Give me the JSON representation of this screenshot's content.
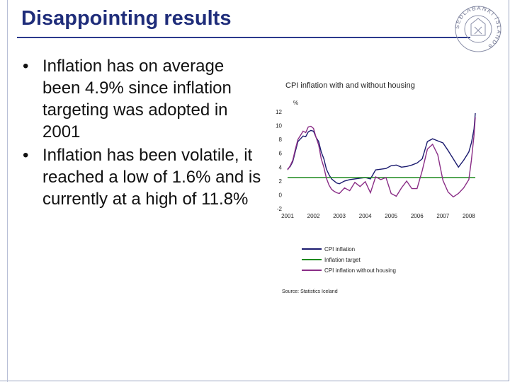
{
  "slide": {
    "title": "Disappointing results",
    "bullets": [
      "Inflation has on average been 4.9% since inflation targeting was adopted in 2001",
      "Inflation has been volatile, it reached a low of 1.6% and is currently at a high of 11.8%"
    ],
    "seal_text": "SEÐLABANKI ÍSLANDS"
  },
  "chart_data": {
    "type": "line",
    "title": "CPI inflation with and without housing",
    "ylabel": "%",
    "source": "Source: Statistics Iceland",
    "xlim": [
      2001,
      2008.25
    ],
    "ylim": [
      -2,
      12
    ],
    "x_ticks": [
      "2001",
      "2002",
      "2003",
      "2004",
      "2005",
      "2006",
      "2007",
      "2008"
    ],
    "y_ticks": [
      -2,
      0,
      2,
      4,
      6,
      8,
      10,
      12
    ],
    "legend_position": "bottom",
    "series": [
      {
        "name": "CPI inflation",
        "color": "#1a1a6e",
        "x": [
          2001.0,
          2001.1,
          2001.2,
          2001.3,
          2001.4,
          2001.5,
          2001.6,
          2001.7,
          2001.8,
          2001.9,
          2002.0,
          2002.1,
          2002.2,
          2002.3,
          2002.4,
          2002.5,
          2002.6,
          2002.7,
          2002.8,
          2002.9,
          2003.0,
          2003.2,
          2003.4,
          2003.6,
          2003.8,
          2004.0,
          2004.2,
          2004.4,
          2004.6,
          2004.8,
          2005.0,
          2005.2,
          2005.4,
          2005.6,
          2005.8,
          2006.0,
          2006.2,
          2006.4,
          2006.6,
          2006.8,
          2007.0,
          2007.2,
          2007.4,
          2007.6,
          2007.8,
          2008.0,
          2008.1,
          2008.2,
          2008.25
        ],
        "y": [
          3.7,
          4.1,
          4.8,
          6.3,
          7.7,
          8.1,
          8.5,
          8.4,
          9.1,
          9.3,
          9.2,
          8.3,
          7.7,
          6.2,
          5.2,
          3.7,
          2.9,
          2.3,
          2.0,
          1.7,
          1.6,
          2.0,
          2.2,
          2.3,
          2.4,
          2.5,
          2.3,
          3.6,
          3.7,
          3.8,
          4.2,
          4.3,
          4.0,
          4.1,
          4.3,
          4.6,
          5.2,
          7.7,
          8.1,
          7.8,
          7.5,
          6.4,
          5.2,
          4.0,
          5.0,
          6.2,
          7.5,
          9.5,
          11.8
        ]
      },
      {
        "name": "Inflation target",
        "color": "#1e8a1e",
        "x": [
          2001.0,
          2008.25
        ],
        "y": [
          2.5,
          2.5
        ]
      },
      {
        "name": "CPI inflation without housing",
        "color": "#8a2d86",
        "x": [
          2001.0,
          2001.1,
          2001.2,
          2001.3,
          2001.4,
          2001.5,
          2001.6,
          2001.7,
          2001.8,
          2001.9,
          2002.0,
          2002.1,
          2002.2,
          2002.3,
          2002.4,
          2002.5,
          2002.6,
          2002.7,
          2002.8,
          2002.9,
          2003.0,
          2003.2,
          2003.4,
          2003.6,
          2003.8,
          2004.0,
          2004.2,
          2004.4,
          2004.6,
          2004.8,
          2005.0,
          2005.2,
          2005.4,
          2005.6,
          2005.8,
          2006.0,
          2006.2,
          2006.4,
          2006.6,
          2006.8,
          2007.0,
          2007.2,
          2007.4,
          2007.6,
          2007.8,
          2008.0,
          2008.1,
          2008.2,
          2008.25
        ],
        "y": [
          3.6,
          4.2,
          5.0,
          6.6,
          8.0,
          8.6,
          9.2,
          9.0,
          9.8,
          9.9,
          9.6,
          8.3,
          7.2,
          5.2,
          4.0,
          2.4,
          1.4,
          0.8,
          0.5,
          0.3,
          0.2,
          1.0,
          0.6,
          1.8,
          1.2,
          1.9,
          0.3,
          2.6,
          2.2,
          2.5,
          0.2,
          -0.2,
          1.0,
          2.0,
          0.9,
          0.9,
          3.5,
          6.6,
          7.3,
          5.8,
          2.1,
          0.4,
          -0.3,
          0.2,
          1.0,
          2.2,
          5.0,
          8.6,
          11.2
        ]
      }
    ]
  }
}
